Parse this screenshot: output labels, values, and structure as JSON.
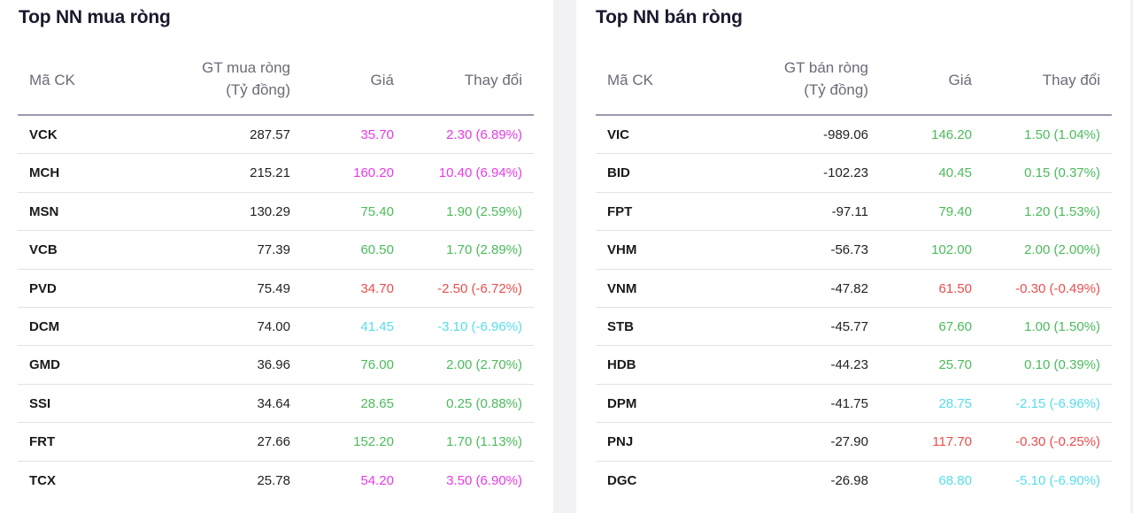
{
  "colors": {
    "ceiling": "#e83ae8",
    "up": "#4cbb5c",
    "down": "#ec4d4d",
    "floor": "#55dded",
    "background": "#f2f2f4",
    "panel": "#ffffff"
  },
  "buy_panel": {
    "title": "Top NN mua ròng",
    "headers": {
      "symbol": "Mã CK",
      "value_line1": "GT mua ròng",
      "value_line2": "(Tỷ đồng)",
      "price": "Giá",
      "change": "Thay đổi"
    },
    "rows": [
      {
        "symbol": "VCK",
        "value": "287.57",
        "price": "35.70",
        "change": "2.30 (6.89%)",
        "status": "ceiling"
      },
      {
        "symbol": "MCH",
        "value": "215.21",
        "price": "160.20",
        "change": "10.40 (6.94%)",
        "status": "ceiling"
      },
      {
        "symbol": "MSN",
        "value": "130.29",
        "price": "75.40",
        "change": "1.90 (2.59%)",
        "status": "up"
      },
      {
        "symbol": "VCB",
        "value": "77.39",
        "price": "60.50",
        "change": "1.70 (2.89%)",
        "status": "up"
      },
      {
        "symbol": "PVD",
        "value": "75.49",
        "price": "34.70",
        "change": "-2.50 (-6.72%)",
        "status": "down"
      },
      {
        "symbol": "DCM",
        "value": "74.00",
        "price": "41.45",
        "change": "-3.10 (-6.96%)",
        "status": "floor"
      },
      {
        "symbol": "GMD",
        "value": "36.96",
        "price": "76.00",
        "change": "2.00 (2.70%)",
        "status": "up"
      },
      {
        "symbol": "SSI",
        "value": "34.64",
        "price": "28.65",
        "change": "0.25 (0.88%)",
        "status": "up"
      },
      {
        "symbol": "FRT",
        "value": "27.66",
        "price": "152.20",
        "change": "1.70 (1.13%)",
        "status": "up"
      },
      {
        "symbol": "TCX",
        "value": "25.78",
        "price": "54.20",
        "change": "3.50 (6.90%)",
        "status": "ceiling"
      }
    ]
  },
  "sell_panel": {
    "title": "Top NN bán ròng",
    "headers": {
      "symbol": "Mã CK",
      "value_line1": "GT bán ròng",
      "value_line2": "(Tỷ đồng)",
      "price": "Giá",
      "change": "Thay đổi"
    },
    "rows": [
      {
        "symbol": "VIC",
        "value": "-989.06",
        "price": "146.20",
        "change": "1.50 (1.04%)",
        "status": "up"
      },
      {
        "symbol": "BID",
        "value": "-102.23",
        "price": "40.45",
        "change": "0.15 (0.37%)",
        "status": "up"
      },
      {
        "symbol": "FPT",
        "value": "-97.11",
        "price": "79.40",
        "change": "1.20 (1.53%)",
        "status": "up"
      },
      {
        "symbol": "VHM",
        "value": "-56.73",
        "price": "102.00",
        "change": "2.00 (2.00%)",
        "status": "up"
      },
      {
        "symbol": "VNM",
        "value": "-47.82",
        "price": "61.50",
        "change": "-0.30 (-0.49%)",
        "status": "down"
      },
      {
        "symbol": "STB",
        "value": "-45.77",
        "price": "67.60",
        "change": "1.00 (1.50%)",
        "status": "up"
      },
      {
        "symbol": "HDB",
        "value": "-44.23",
        "price": "25.70",
        "change": "0.10 (0.39%)",
        "status": "up"
      },
      {
        "symbol": "DPM",
        "value": "-41.75",
        "price": "28.75",
        "change": "-2.15 (-6.96%)",
        "status": "floor"
      },
      {
        "symbol": "PNJ",
        "value": "-27.90",
        "price": "117.70",
        "change": "-0.30 (-0.25%)",
        "status": "down"
      },
      {
        "symbol": "DGC",
        "value": "-26.98",
        "price": "68.80",
        "change": "-5.10 (-6.90%)",
        "status": "floor"
      }
    ]
  }
}
